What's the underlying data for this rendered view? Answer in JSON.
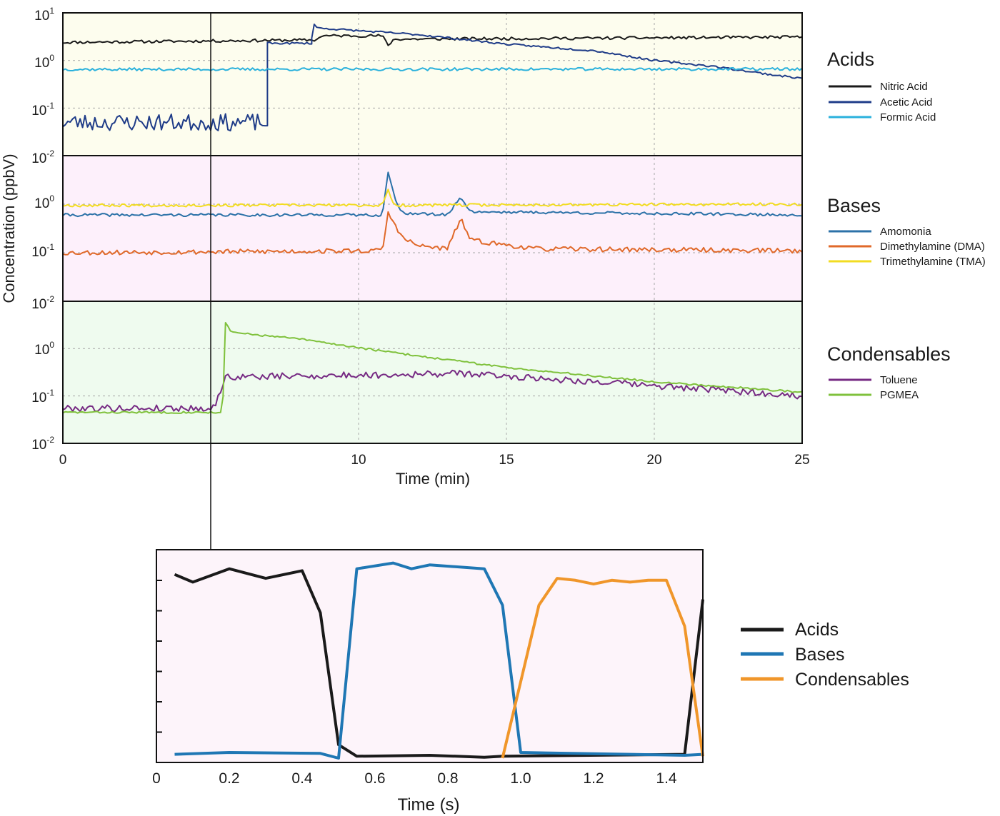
{
  "colors": {
    "acids_bg": "#fdfdee",
    "bases_bg": "#fdf0fb",
    "condensables_bg": "#effbef",
    "inset_bg": "#fdf4fa",
    "nitric": "#1a1a1a",
    "acetic": "#1f3c88",
    "formic": "#2ab1dc",
    "ammonia": "#2c72a8",
    "dma": "#e0692a",
    "tma": "#f2dc22",
    "toluene": "#762a83",
    "pgmea": "#7fc13c",
    "inset_acids": "#1a1a1a",
    "inset_bases": "#1f77b4",
    "inset_condensables": "#f0962a"
  },
  "chart_data": [
    {
      "type": "line",
      "id": "main",
      "scale": "log",
      "ylabel": "Concentration (ppbV)",
      "xlabel": "Time (min)",
      "xlim": [
        0,
        25
      ],
      "xticks": [
        "0",
        "10",
        "15",
        "20",
        "25"
      ],
      "xtick_values": [
        0,
        10,
        15,
        20,
        25
      ],
      "ylim": [
        0.01,
        10
      ],
      "marker_time_min": 5,
      "panels": [
        {
          "title": "Acids",
          "ytick_labels": [
            {
              "base": "10",
              "exp": "1"
            },
            {
              "base": "10",
              "exp": "0"
            },
            {
              "base": "10",
              "exp": "-1"
            },
            {
              "base": "10",
              "exp": "-2"
            }
          ],
          "series": [
            {
              "name": "Nitric Acid",
              "color_key": "nitric",
              "noise": 0.03,
              "seed": 11,
              "points": [
                [
                  0,
                  2.4
                ],
                [
                  8.6,
                  2.7
                ],
                [
                  8.7,
                  3.3
                ],
                [
                  10.8,
                  3.3
                ],
                [
                  11,
                  2.1
                ],
                [
                  11.2,
                  2.8
                ],
                [
                  25,
                  3.1
                ]
              ]
            },
            {
              "name": "Acetic Acid",
              "color_key": "acetic",
              "noise": 0.02,
              "seed": 23,
              "points": [
                [
                  8.4,
                  2.5
                ],
                [
                  8.5,
                  6.0
                ],
                [
                  8.6,
                  4.8
                ],
                [
                  12,
                  3.5
                ],
                [
                  15,
                  2.2
                ],
                [
                  18,
                  1.6
                ],
                [
                  20,
                  1.0
                ],
                [
                  22,
                  0.75
                ],
                [
                  24,
                  0.5
                ],
                [
                  25,
                  0.42
                ]
              ],
              "pre_segments": [
                {
                  "from": 0,
                  "to": 6.9,
                  "value": 0.05,
                  "noise": 0.18
                },
                {
                  "from": 6.9,
                  "to": 8.4,
                  "value": 2.3,
                  "noise": 0.02
                }
              ]
            },
            {
              "name": "Formic Acid",
              "color_key": "formic",
              "noise": 0.03,
              "seed": 37,
              "points": [
                [
                  0,
                  0.65
                ],
                [
                  25,
                  0.66
                ]
              ]
            }
          ]
        },
        {
          "title": "Bases",
          "ytick_labels": [
            {
              "base": "10",
              "exp": "0"
            },
            {
              "base": "10",
              "exp": "-1"
            },
            {
              "base": "10",
              "exp": "-2"
            }
          ],
          "series": [
            {
              "name": "Amomonia",
              "color_key": "ammonia",
              "noise": 0.03,
              "seed": 41,
              "points": [
                [
                  0,
                  0.6
                ],
                [
                  10.8,
                  0.6
                ],
                [
                  11,
                  4.5
                ],
                [
                  11.3,
                  0.9
                ],
                [
                  11.6,
                  0.65
                ],
                [
                  13,
                  0.6
                ],
                [
                  13.45,
                  1.4
                ],
                [
                  13.8,
                  0.7
                ],
                [
                  25,
                  0.6
                ]
              ]
            },
            {
              "name": "Dimethylamine (DMA)",
              "color_key": "dma",
              "noise": 0.05,
              "seed": 53,
              "points": [
                [
                  0,
                  0.1
                ],
                [
                  10.8,
                  0.11
                ],
                [
                  11,
                  0.65
                ],
                [
                  11.5,
                  0.2
                ],
                [
                  12,
                  0.14
                ],
                [
                  13,
                  0.12
                ],
                [
                  13.45,
                  0.5
                ],
                [
                  13.8,
                  0.18
                ],
                [
                  16,
                  0.12
                ],
                [
                  25,
                  0.11
                ]
              ]
            },
            {
              "name": "Trimethylamine (TMA)",
              "color_key": "tma",
              "noise": 0.03,
              "seed": 67,
              "points": [
                [
                  0,
                  0.95
                ],
                [
                  10.8,
                  0.95
                ],
                [
                  11,
                  1.9
                ],
                [
                  11.2,
                  0.95
                ],
                [
                  25,
                  1.0
                ]
              ]
            }
          ]
        },
        {
          "title": "Condensables",
          "ytick_labels": [
            {
              "base": "10",
              "exp": "0"
            },
            {
              "base": "10",
              "exp": "-1"
            },
            {
              "base": "10",
              "exp": "-2"
            }
          ],
          "series": [
            {
              "name": "Toluene",
              "color_key": "toluene",
              "noise": 0.07,
              "seed": 79,
              "points": [
                [
                  0,
                  0.055
                ],
                [
                  5.1,
                  0.055
                ],
                [
                  5.5,
                  0.25
                ],
                [
                  11,
                  0.28
                ],
                [
                  13.5,
                  0.3
                ],
                [
                  18,
                  0.2
                ],
                [
                  25,
                  0.1
                ]
              ]
            },
            {
              "name": "PGMEA",
              "color_key": "pgmea",
              "noise": 0.02,
              "seed": 83,
              "points": [
                [
                  0,
                  0.045
                ],
                [
                  5.4,
                  0.045
                ],
                [
                  5.5,
                  3.5
                ],
                [
                  5.7,
                  2.2
                ],
                [
                  8,
                  1.6
                ],
                [
                  11,
                  0.85
                ],
                [
                  15,
                  0.4
                ],
                [
                  20,
                  0.2
                ],
                [
                  25,
                  0.12
                ]
              ]
            }
          ]
        }
      ]
    },
    {
      "type": "line",
      "id": "inset",
      "xlabel": "Time (s)",
      "xlim": [
        0,
        1.5
      ],
      "xticks": [
        "0",
        "0.2",
        "0.4",
        "0.6",
        "0.8",
        "1.0",
        "1.2",
        "1.4"
      ],
      "xtick_values": [
        0,
        0.2,
        0.4,
        0.6,
        0.8,
        1.0,
        1.2,
        1.4
      ],
      "ylim": [
        0,
        1
      ],
      "series": [
        {
          "name": "Acids",
          "color_key": "inset_acids",
          "x": [
            0.05,
            0.1,
            0.2,
            0.3,
            0.4,
            0.45,
            0.5,
            0.55,
            0.75,
            0.9,
            0.95,
            1.45,
            1.5
          ],
          "y": [
            0.96,
            0.92,
            0.99,
            0.94,
            0.98,
            0.76,
            0.07,
            0.01,
            0.015,
            0.005,
            0.01,
            0.02,
            0.83
          ]
        },
        {
          "name": "Bases",
          "color_key": "inset_bases",
          "x": [
            0.05,
            0.2,
            0.45,
            0.5,
            0.55,
            0.65,
            0.7,
            0.75,
            0.9,
            0.95,
            1.0,
            1.45,
            1.5
          ],
          "y": [
            0.02,
            0.03,
            0.025,
            0.0,
            0.99,
            1.02,
            0.99,
            1.01,
            0.99,
            0.8,
            0.03,
            0.015,
            0.02
          ]
        },
        {
          "name": "Condensables",
          "color_key": "inset_condensables",
          "x": [
            0.95,
            1.05,
            1.1,
            1.15,
            1.2,
            1.25,
            1.3,
            1.35,
            1.4,
            1.45,
            1.5
          ],
          "y": [
            0.0,
            0.8,
            0.94,
            0.93,
            0.91,
            0.93,
            0.92,
            0.93,
            0.93,
            0.69,
            0.01
          ]
        }
      ]
    }
  ]
}
